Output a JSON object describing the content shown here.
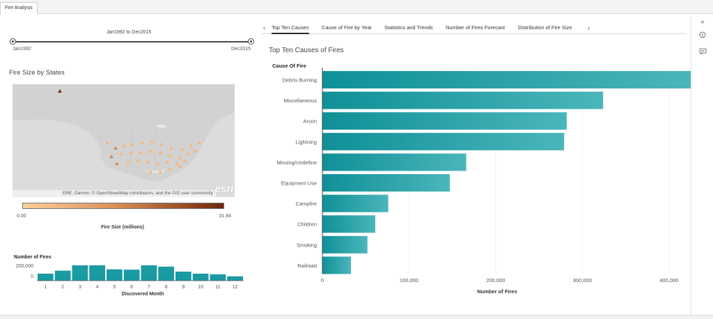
{
  "tab_strip": {
    "active_tab": "Fire Analysis"
  },
  "time_slider": {
    "range_label": "Jan1992 to Dec2015",
    "min_label": "Jan1992",
    "max_label": "Dec2015"
  },
  "map": {
    "title": "Fire Size by States",
    "attribution": "ERE, Garmin, © OpenStreetMap contributors, and the GIS user community",
    "logo": "esri",
    "colors": {
      "land": "#dcdcdc",
      "low": "#fbcf99",
      "high": "#6e2510"
    },
    "legend": {
      "min": "0.00",
      "max": "31.84",
      "title": "Fire Size (millions)"
    }
  },
  "month_histogram": {
    "y_label": "Number of Fires",
    "y_ticks": [
      "200,000",
      "0"
    ],
    "x_label": "Discovered Month",
    "months": [
      "1",
      "2",
      "3",
      "4",
      "5",
      "6",
      "7",
      "8",
      "9",
      "10",
      "11",
      "12"
    ],
    "values": [
      105000,
      150000,
      230000,
      230000,
      170000,
      165000,
      230000,
      210000,
      135000,
      105000,
      95000,
      65000
    ],
    "ymax": 260000,
    "color": "#1a9aa3"
  },
  "main_tabs": {
    "labels": [
      "Top Ten Causes",
      "Cause of Fire by Year",
      "Statistics and Trends",
      "Number of Fires Forecast",
      "Distribution of Fire Size"
    ],
    "active_index": 0
  },
  "chart_data": {
    "type": "bar",
    "orientation": "horizontal",
    "title": "Top Ten Causes of Fires",
    "ylabel": "Cause Of Fire",
    "xlabel": "Number of Fires",
    "categories": [
      "Debris Burning",
      "Miscellaneous",
      "Arson",
      "Lightning",
      "Missing/Undefine",
      "Equipment Use",
      "Campfire",
      "Children",
      "Smoking",
      "Railroad"
    ],
    "values": [
      429000,
      324000,
      282000,
      279000,
      166000,
      147000,
      76000,
      61000,
      52000,
      33000
    ],
    "xlim": [
      0,
      450000
    ],
    "x_ticks": [
      0,
      100000,
      200000,
      300000,
      400000
    ],
    "x_tick_labels": [
      "0",
      "100,000",
      "200,000",
      "300,000",
      "400,000"
    ],
    "grid": true,
    "colors": {
      "bar_start": "#0f9097",
      "bar_end": "#4ab6bb"
    }
  }
}
